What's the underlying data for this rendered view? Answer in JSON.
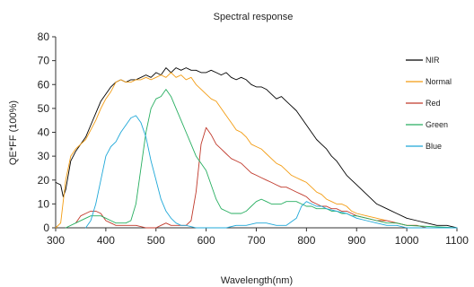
{
  "chart_data": {
    "type": "line",
    "title": "Spectral response",
    "xlabel": "Wavelength(nm)",
    "ylabel": "QE*FF (100%)",
    "xlim": [
      300,
      1100
    ],
    "ylim": [
      0,
      80
    ],
    "x_ticks": [
      300,
      400,
      500,
      600,
      700,
      800,
      900,
      1000,
      1100
    ],
    "y_ticks": [
      0,
      10,
      20,
      30,
      40,
      50,
      60,
      70,
      80
    ],
    "grid": false,
    "legend_position": "right",
    "series": [
      {
        "name": "NIR",
        "color": "#000000",
        "points": [
          [
            300,
            19
          ],
          [
            310,
            18
          ],
          [
            315,
            13
          ],
          [
            320,
            16
          ],
          [
            330,
            28
          ],
          [
            340,
            32
          ],
          [
            350,
            35
          ],
          [
            360,
            38
          ],
          [
            370,
            43
          ],
          [
            380,
            48
          ],
          [
            390,
            53
          ],
          [
            400,
            56
          ],
          [
            410,
            59
          ],
          [
            420,
            61
          ],
          [
            430,
            62
          ],
          [
            440,
            61
          ],
          [
            450,
            62
          ],
          [
            460,
            62
          ],
          [
            470,
            63
          ],
          [
            480,
            64
          ],
          [
            490,
            63
          ],
          [
            500,
            65
          ],
          [
            510,
            64
          ],
          [
            520,
            67
          ],
          [
            530,
            65
          ],
          [
            540,
            67
          ],
          [
            550,
            66
          ],
          [
            560,
            67
          ],
          [
            570,
            66
          ],
          [
            580,
            66
          ],
          [
            590,
            65
          ],
          [
            600,
            65
          ],
          [
            610,
            66
          ],
          [
            620,
            65
          ],
          [
            630,
            64
          ],
          [
            640,
            65
          ],
          [
            650,
            63
          ],
          [
            660,
            62
          ],
          [
            670,
            63
          ],
          [
            680,
            62
          ],
          [
            690,
            60
          ],
          [
            700,
            59
          ],
          [
            710,
            59
          ],
          [
            720,
            58
          ],
          [
            730,
            56
          ],
          [
            740,
            54
          ],
          [
            750,
            55
          ],
          [
            760,
            53
          ],
          [
            770,
            51
          ],
          [
            780,
            49
          ],
          [
            790,
            46
          ],
          [
            800,
            43
          ],
          [
            810,
            40
          ],
          [
            820,
            37
          ],
          [
            830,
            35
          ],
          [
            840,
            33
          ],
          [
            850,
            30
          ],
          [
            860,
            28
          ],
          [
            870,
            25
          ],
          [
            880,
            22
          ],
          [
            890,
            20
          ],
          [
            900,
            18
          ],
          [
            920,
            14
          ],
          [
            940,
            10
          ],
          [
            960,
            8
          ],
          [
            980,
            6
          ],
          [
            1000,
            4
          ],
          [
            1020,
            3
          ],
          [
            1040,
            2
          ],
          [
            1060,
            1
          ],
          [
            1080,
            1
          ],
          [
            1100,
            0
          ]
        ]
      },
      {
        "name": "Normal",
        "color": "#f39c12",
        "points": [
          [
            300,
            0
          ],
          [
            310,
            2
          ],
          [
            320,
            20
          ],
          [
            330,
            30
          ],
          [
            340,
            33
          ],
          [
            350,
            35
          ],
          [
            360,
            37
          ],
          [
            370,
            41
          ],
          [
            380,
            45
          ],
          [
            390,
            50
          ],
          [
            400,
            54
          ],
          [
            410,
            57
          ],
          [
            420,
            61
          ],
          [
            430,
            62
          ],
          [
            440,
            61
          ],
          [
            450,
            61
          ],
          [
            460,
            62
          ],
          [
            470,
            62
          ],
          [
            480,
            63
          ],
          [
            490,
            62
          ],
          [
            500,
            63
          ],
          [
            510,
            64
          ],
          [
            520,
            63
          ],
          [
            530,
            65
          ],
          [
            540,
            63
          ],
          [
            550,
            64
          ],
          [
            560,
            62
          ],
          [
            570,
            63
          ],
          [
            580,
            60
          ],
          [
            590,
            58
          ],
          [
            600,
            56
          ],
          [
            610,
            54
          ],
          [
            620,
            53
          ],
          [
            630,
            50
          ],
          [
            640,
            47
          ],
          [
            650,
            44
          ],
          [
            660,
            41
          ],
          [
            670,
            40
          ],
          [
            680,
            38
          ],
          [
            690,
            35
          ],
          [
            700,
            34
          ],
          [
            710,
            33
          ],
          [
            720,
            31
          ],
          [
            730,
            29
          ],
          [
            740,
            27
          ],
          [
            750,
            26
          ],
          [
            760,
            24
          ],
          [
            770,
            22
          ],
          [
            780,
            21
          ],
          [
            790,
            20
          ],
          [
            800,
            19
          ],
          [
            810,
            17
          ],
          [
            820,
            15
          ],
          [
            830,
            14
          ],
          [
            840,
            12
          ],
          [
            850,
            11
          ],
          [
            860,
            10
          ],
          [
            870,
            10
          ],
          [
            880,
            9
          ],
          [
            890,
            7
          ],
          [
            900,
            6
          ],
          [
            920,
            5
          ],
          [
            940,
            4
          ],
          [
            960,
            3
          ],
          [
            980,
            2
          ],
          [
            1000,
            1
          ],
          [
            1020,
            1
          ],
          [
            1040,
            0
          ],
          [
            1060,
            0
          ],
          [
            1080,
            0
          ],
          [
            1100,
            0
          ]
        ]
      },
      {
        "name": "Red",
        "color": "#c0392b",
        "points": [
          [
            340,
            2
          ],
          [
            350,
            5
          ],
          [
            360,
            6
          ],
          [
            370,
            7
          ],
          [
            380,
            7
          ],
          [
            390,
            6
          ],
          [
            400,
            3
          ],
          [
            410,
            2
          ],
          [
            420,
            1
          ],
          [
            440,
            1
          ],
          [
            460,
            1
          ],
          [
            480,
            0
          ],
          [
            500,
            0
          ],
          [
            510,
            1
          ],
          [
            520,
            2
          ],
          [
            530,
            1
          ],
          [
            540,
            1
          ],
          [
            550,
            1
          ],
          [
            560,
            1
          ],
          [
            570,
            3
          ],
          [
            580,
            15
          ],
          [
            590,
            35
          ],
          [
            600,
            42
          ],
          [
            610,
            39
          ],
          [
            620,
            35
          ],
          [
            630,
            33
          ],
          [
            640,
            31
          ],
          [
            650,
            29
          ],
          [
            660,
            28
          ],
          [
            670,
            27
          ],
          [
            680,
            25
          ],
          [
            690,
            23
          ],
          [
            700,
            22
          ],
          [
            710,
            21
          ],
          [
            720,
            20
          ],
          [
            730,
            19
          ],
          [
            740,
            18
          ],
          [
            750,
            17
          ],
          [
            760,
            17
          ],
          [
            770,
            16
          ],
          [
            780,
            15
          ],
          [
            790,
            14
          ],
          [
            800,
            13
          ],
          [
            810,
            11
          ],
          [
            820,
            10
          ],
          [
            830,
            9
          ],
          [
            840,
            9
          ],
          [
            850,
            8
          ],
          [
            860,
            8
          ],
          [
            870,
            7
          ],
          [
            880,
            7
          ],
          [
            890,
            6
          ],
          [
            900,
            5
          ],
          [
            920,
            4
          ],
          [
            940,
            3
          ],
          [
            960,
            3
          ],
          [
            980,
            2
          ],
          [
            1000,
            1
          ],
          [
            1020,
            1
          ],
          [
            1040,
            0
          ],
          [
            1100,
            0
          ]
        ]
      },
      {
        "name": "Green",
        "color": "#27ae60",
        "points": [
          [
            320,
            0
          ],
          [
            340,
            2
          ],
          [
            360,
            4
          ],
          [
            370,
            5
          ],
          [
            380,
            5
          ],
          [
            390,
            5
          ],
          [
            400,
            4
          ],
          [
            410,
            3
          ],
          [
            420,
            2
          ],
          [
            430,
            2
          ],
          [
            440,
            2
          ],
          [
            450,
            3
          ],
          [
            460,
            10
          ],
          [
            470,
            25
          ],
          [
            480,
            40
          ],
          [
            490,
            50
          ],
          [
            500,
            54
          ],
          [
            510,
            55
          ],
          [
            520,
            58
          ],
          [
            530,
            55
          ],
          [
            540,
            50
          ],
          [
            550,
            45
          ],
          [
            560,
            40
          ],
          [
            570,
            35
          ],
          [
            580,
            30
          ],
          [
            590,
            27
          ],
          [
            600,
            24
          ],
          [
            610,
            18
          ],
          [
            620,
            12
          ],
          [
            630,
            8
          ],
          [
            640,
            7
          ],
          [
            650,
            6
          ],
          [
            660,
            6
          ],
          [
            670,
            6
          ],
          [
            680,
            7
          ],
          [
            690,
            9
          ],
          [
            700,
            11
          ],
          [
            710,
            12
          ],
          [
            720,
            11
          ],
          [
            730,
            10
          ],
          [
            740,
            10
          ],
          [
            750,
            10
          ],
          [
            760,
            11
          ],
          [
            770,
            11
          ],
          [
            780,
            11
          ],
          [
            790,
            10
          ],
          [
            800,
            9
          ],
          [
            810,
            9
          ],
          [
            820,
            8
          ],
          [
            830,
            8
          ],
          [
            840,
            8
          ],
          [
            850,
            7
          ],
          [
            860,
            7
          ],
          [
            870,
            6
          ],
          [
            880,
            6
          ],
          [
            890,
            5
          ],
          [
            900,
            5
          ],
          [
            920,
            4
          ],
          [
            940,
            3
          ],
          [
            960,
            2
          ],
          [
            980,
            2
          ],
          [
            1000,
            1
          ],
          [
            1100,
            0
          ]
        ]
      },
      {
        "name": "Blue",
        "color": "#1fa8d8",
        "points": [
          [
            360,
            0
          ],
          [
            370,
            3
          ],
          [
            380,
            10
          ],
          [
            390,
            20
          ],
          [
            400,
            30
          ],
          [
            410,
            34
          ],
          [
            420,
            36
          ],
          [
            430,
            40
          ],
          [
            440,
            43
          ],
          [
            450,
            46
          ],
          [
            460,
            47
          ],
          [
            470,
            44
          ],
          [
            480,
            38
          ],
          [
            490,
            28
          ],
          [
            500,
            20
          ],
          [
            510,
            12
          ],
          [
            520,
            7
          ],
          [
            530,
            4
          ],
          [
            540,
            2
          ],
          [
            550,
            1
          ],
          [
            560,
            1
          ],
          [
            580,
            0
          ],
          [
            600,
            0
          ],
          [
            640,
            0
          ],
          [
            660,
            1
          ],
          [
            680,
            1
          ],
          [
            700,
            2
          ],
          [
            720,
            2
          ],
          [
            740,
            1
          ],
          [
            760,
            1
          ],
          [
            780,
            4
          ],
          [
            790,
            9
          ],
          [
            800,
            11
          ],
          [
            810,
            10
          ],
          [
            820,
            9
          ],
          [
            830,
            9
          ],
          [
            840,
            8
          ],
          [
            860,
            7
          ],
          [
            880,
            6
          ],
          [
            900,
            4
          ],
          [
            920,
            3
          ],
          [
            940,
            2
          ],
          [
            960,
            1
          ],
          [
            980,
            1
          ],
          [
            1000,
            0
          ],
          [
            1100,
            0
          ]
        ]
      }
    ]
  }
}
